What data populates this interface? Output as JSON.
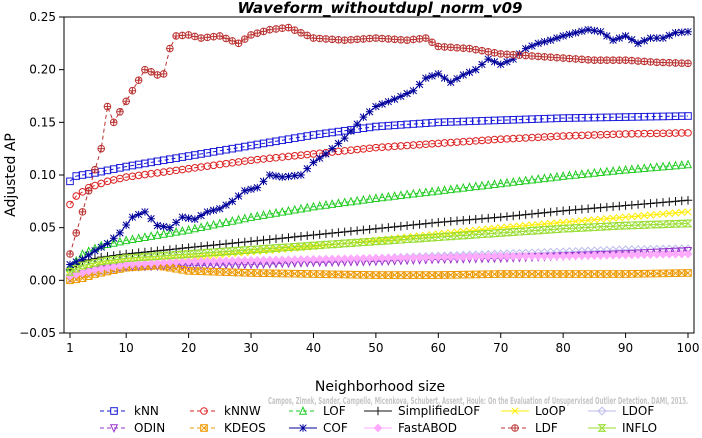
{
  "chart_data": {
    "type": "line",
    "title": "Waveform_withoutdupl_norm_v09",
    "xlabel": "Neighborhood size",
    "ylabel": "Adjusted AP",
    "xlim": [
      1,
      100
    ],
    "ylim": [
      -0.05,
      0.25
    ],
    "x_ticks": [
      "1",
      "10",
      "20",
      "30",
      "40",
      "50",
      "60",
      "70",
      "80",
      "90",
      "100"
    ],
    "y_ticks": [
      "−0.05",
      "0.00",
      "0.05",
      "0.10",
      "0.15",
      "0.20",
      "0.25"
    ],
    "grid": false,
    "legend_position": "bottom",
    "watermark": "Campos, Zimek, Sander, Campello, Micenkova, Schubert, Assent, Houle: On the Evaluation of Unsupervised Outlier Detection. DAMI, 2015.",
    "series": [
      {
        "name": "kNN",
        "color": "#1a1adb",
        "marker": "square",
        "dashed": true,
        "points": [
          [
            1,
            0.094
          ],
          [
            2,
            0.099
          ],
          [
            5,
            0.102
          ],
          [
            10,
            0.108
          ],
          [
            20,
            0.118
          ],
          [
            30,
            0.128
          ],
          [
            40,
            0.138
          ],
          [
            50,
            0.146
          ],
          [
            60,
            0.15
          ],
          [
            70,
            0.152
          ],
          [
            80,
            0.154
          ],
          [
            90,
            0.155
          ],
          [
            100,
            0.156
          ]
        ]
      },
      {
        "name": "kNNW",
        "color": "#dd2222",
        "marker": "circle",
        "dashed": true,
        "points": [
          [
            1,
            0.072
          ],
          [
            2,
            0.08
          ],
          [
            4,
            0.088
          ],
          [
            7,
            0.094
          ],
          [
            10,
            0.098
          ],
          [
            20,
            0.106
          ],
          [
            30,
            0.114
          ],
          [
            40,
            0.12
          ],
          [
            50,
            0.126
          ],
          [
            60,
            0.13
          ],
          [
            70,
            0.134
          ],
          [
            80,
            0.137
          ],
          [
            90,
            0.139
          ],
          [
            100,
            0.14
          ]
        ]
      },
      {
        "name": "LOF",
        "color": "#22cc22",
        "marker": "triangle-up",
        "dashed": true,
        "points": [
          [
            1,
            0.012
          ],
          [
            3,
            0.025
          ],
          [
            6,
            0.033
          ],
          [
            10,
            0.038
          ],
          [
            20,
            0.048
          ],
          [
            30,
            0.06
          ],
          [
            40,
            0.07
          ],
          [
            50,
            0.078
          ],
          [
            60,
            0.085
          ],
          [
            70,
            0.092
          ],
          [
            80,
            0.099
          ],
          [
            90,
            0.105
          ],
          [
            100,
            0.11
          ]
        ]
      },
      {
        "name": "SimplifiedLOF",
        "color": "#111111",
        "marker": "plus",
        "dashed": false,
        "points": [
          [
            1,
            0.01
          ],
          [
            3,
            0.018
          ],
          [
            6,
            0.022
          ],
          [
            10,
            0.025
          ],
          [
            20,
            0.031
          ],
          [
            30,
            0.037
          ],
          [
            40,
            0.043
          ],
          [
            50,
            0.049
          ],
          [
            60,
            0.055
          ],
          [
            70,
            0.06
          ],
          [
            80,
            0.066
          ],
          [
            90,
            0.071
          ],
          [
            100,
            0.076
          ]
        ]
      },
      {
        "name": "LoOP",
        "color": "#ffee00",
        "marker": "cross",
        "dashed": false,
        "points": [
          [
            1,
            0.005
          ],
          [
            3,
            0.01
          ],
          [
            6,
            0.015
          ],
          [
            10,
            0.018
          ],
          [
            20,
            0.022
          ],
          [
            30,
            0.027
          ],
          [
            40,
            0.032
          ],
          [
            50,
            0.038
          ],
          [
            60,
            0.044
          ],
          [
            70,
            0.05
          ],
          [
            80,
            0.055
          ],
          [
            90,
            0.06
          ],
          [
            100,
            0.065
          ]
        ]
      },
      {
        "name": "LDOF",
        "color": "#bbbbee",
        "marker": "diamond",
        "dashed": false,
        "points": [
          [
            1,
            0.003
          ],
          [
            5,
            0.008
          ],
          [
            10,
            0.012
          ],
          [
            20,
            0.015
          ],
          [
            30,
            0.017
          ],
          [
            40,
            0.019
          ],
          [
            50,
            0.021
          ],
          [
            60,
            0.023
          ],
          [
            70,
            0.025
          ],
          [
            80,
            0.027
          ],
          [
            90,
            0.029
          ],
          [
            100,
            0.03
          ]
        ]
      },
      {
        "name": "ODIN",
        "color": "#9933cc",
        "marker": "triangle-down",
        "dashed": true,
        "points": [
          [
            1,
            0.002
          ],
          [
            3,
            0.006
          ],
          [
            5,
            0.01
          ],
          [
            10,
            0.013
          ],
          [
            20,
            0.014
          ],
          [
            30,
            0.015
          ],
          [
            40,
            0.017
          ],
          [
            50,
            0.018
          ],
          [
            60,
            0.02
          ],
          [
            70,
            0.021
          ],
          [
            80,
            0.023
          ],
          [
            90,
            0.025
          ],
          [
            100,
            0.028
          ]
        ]
      },
      {
        "name": "KDEOS",
        "color": "#ee9900",
        "marker": "square-x",
        "dashed": true,
        "points": [
          [
            1,
            0.0
          ],
          [
            3,
            0.002
          ],
          [
            5,
            0.006
          ],
          [
            10,
            0.012
          ],
          [
            15,
            0.014
          ],
          [
            20,
            0.009
          ],
          [
            30,
            0.007
          ],
          [
            40,
            0.006
          ],
          [
            50,
            0.005
          ],
          [
            60,
            0.005
          ],
          [
            70,
            0.006
          ],
          [
            80,
            0.006
          ],
          [
            90,
            0.006
          ],
          [
            100,
            0.007
          ]
        ]
      },
      {
        "name": "COF",
        "color": "#00009a",
        "marker": "asterisk",
        "dashed": false,
        "points": [
          [
            1,
            0.015
          ],
          [
            3,
            0.02
          ],
          [
            5,
            0.028
          ],
          [
            7,
            0.035
          ],
          [
            9,
            0.045
          ],
          [
            11,
            0.06
          ],
          [
            13,
            0.065
          ],
          [
            15,
            0.052
          ],
          [
            17,
            0.05
          ],
          [
            19,
            0.06
          ],
          [
            21,
            0.058
          ],
          [
            23,
            0.065
          ],
          [
            25,
            0.068
          ],
          [
            27,
            0.075
          ],
          [
            29,
            0.085
          ],
          [
            31,
            0.088
          ],
          [
            33,
            0.1
          ],
          [
            35,
            0.098
          ],
          [
            38,
            0.1
          ],
          [
            40,
            0.112
          ],
          [
            42,
            0.12
          ],
          [
            45,
            0.135
          ],
          [
            48,
            0.155
          ],
          [
            50,
            0.165
          ],
          [
            53,
            0.172
          ],
          [
            56,
            0.18
          ],
          [
            58,
            0.192
          ],
          [
            60,
            0.196
          ],
          [
            62,
            0.188
          ],
          [
            64,
            0.195
          ],
          [
            66,
            0.2
          ],
          [
            68,
            0.21
          ],
          [
            70,
            0.205
          ],
          [
            72,
            0.21
          ],
          [
            74,
            0.22
          ],
          [
            76,
            0.225
          ],
          [
            78,
            0.228
          ],
          [
            80,
            0.232
          ],
          [
            82,
            0.235
          ],
          [
            84,
            0.238
          ],
          [
            86,
            0.236
          ],
          [
            88,
            0.228
          ],
          [
            90,
            0.232
          ],
          [
            92,
            0.225
          ],
          [
            94,
            0.23
          ],
          [
            96,
            0.23
          ],
          [
            98,
            0.235
          ],
          [
            100,
            0.236
          ]
        ]
      },
      {
        "name": "FastABOD",
        "color": "#ffaaff",
        "marker": "diamond-filled",
        "dashed": false,
        "points": [
          [
            1,
            0.004
          ],
          [
            5,
            0.01
          ],
          [
            10,
            0.015
          ],
          [
            20,
            0.018
          ],
          [
            30,
            0.019
          ],
          [
            40,
            0.02
          ],
          [
            50,
            0.021
          ],
          [
            60,
            0.022
          ],
          [
            70,
            0.023
          ],
          [
            80,
            0.023
          ],
          [
            90,
            0.024
          ],
          [
            100,
            0.025
          ]
        ]
      },
      {
        "name": "LDF",
        "color": "#bb3333",
        "marker": "circle-plus",
        "dashed": true,
        "points": [
          [
            1,
            0.025
          ],
          [
            2,
            0.045
          ],
          [
            3,
            0.065
          ],
          [
            4,
            0.085
          ],
          [
            5,
            0.105
          ],
          [
            6,
            0.125
          ],
          [
            7,
            0.165
          ],
          [
            8,
            0.15
          ],
          [
            9,
            0.16
          ],
          [
            10,
            0.17
          ],
          [
            11,
            0.18
          ],
          [
            12,
            0.19
          ],
          [
            13,
            0.2
          ],
          [
            14,
            0.198
          ],
          [
            15,
            0.195
          ],
          [
            16,
            0.196
          ],
          [
            17,
            0.22
          ],
          [
            18,
            0.232
          ],
          [
            20,
            0.233
          ],
          [
            22,
            0.23
          ],
          [
            25,
            0.232
          ],
          [
            28,
            0.225
          ],
          [
            30,
            0.233
          ],
          [
            33,
            0.238
          ],
          [
            36,
            0.24
          ],
          [
            40,
            0.23
          ],
          [
            45,
            0.228
          ],
          [
            50,
            0.23
          ],
          [
            55,
            0.228
          ],
          [
            58,
            0.23
          ],
          [
            60,
            0.222
          ],
          [
            65,
            0.22
          ],
          [
            70,
            0.215
          ],
          [
            75,
            0.213
          ],
          [
            80,
            0.211
          ],
          [
            85,
            0.209
          ],
          [
            90,
            0.209
          ],
          [
            95,
            0.207
          ],
          [
            100,
            0.206
          ]
        ]
      },
      {
        "name": "INFLO",
        "color": "#99dd33",
        "marker": "hourglass",
        "dashed": false,
        "points": [
          [
            1,
            0.008
          ],
          [
            3,
            0.014
          ],
          [
            6,
            0.018
          ],
          [
            10,
            0.021
          ],
          [
            20,
            0.025
          ],
          [
            30,
            0.029
          ],
          [
            40,
            0.033
          ],
          [
            50,
            0.037
          ],
          [
            60,
            0.041
          ],
          [
            70,
            0.045
          ],
          [
            80,
            0.049
          ],
          [
            90,
            0.052
          ],
          [
            100,
            0.054
          ]
        ]
      }
    ]
  }
}
